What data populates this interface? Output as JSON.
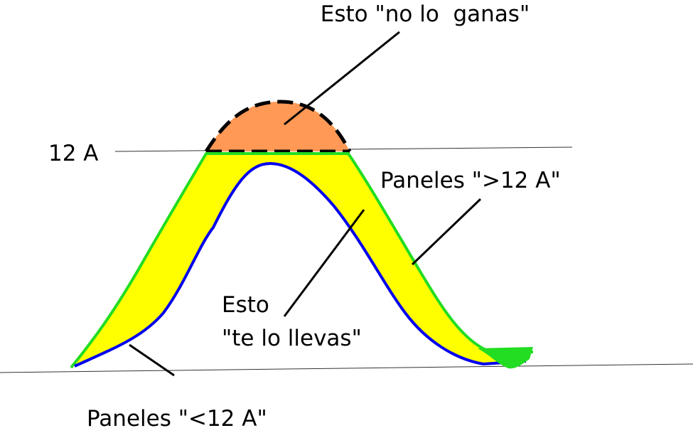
{
  "annotations": {
    "top": "Esto \"no lo  ganas\"",
    "level": "12 A",
    "above": "Paneles \">12 A\"",
    "middle_1": "Esto",
    "middle_2": "\"te lo llevas\"",
    "below": "Paneles \"<12 A\""
  }
}
